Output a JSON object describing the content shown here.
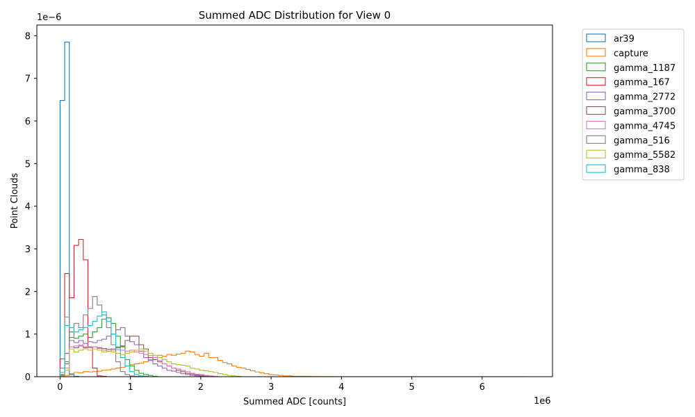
{
  "chart_data": {
    "type": "histogram-step",
    "title": "Summed ADC Distribution for View 0",
    "xlabel": "Summed ADC [counts]",
    "ylabel": "Point Clouds",
    "x_offset_text": "1e6",
    "y_offset_text": "1e−6",
    "xlim": [
      -0.33,
      7.0
    ],
    "ylim": [
      0,
      8.25
    ],
    "x_ticks": [
      0,
      1,
      2,
      3,
      4,
      5,
      6
    ],
    "y_ticks": [
      0,
      1,
      2,
      3,
      4,
      5,
      6,
      7,
      8
    ],
    "x_units": "×1e6 counts",
    "y_units": "×1e-6",
    "bin_width": 0.066,
    "legend_position": "outside-right",
    "grid": false,
    "series": [
      {
        "name": "ar39",
        "color": "#1f77b4",
        "values": [
          6.48,
          7.85,
          0.05,
          0.01
        ]
      },
      {
        "name": "capture",
        "color": "#ff7f0e",
        "values": [
          0.02,
          0.03,
          0.07,
          0.1,
          0.09,
          0.12,
          0.11,
          0.12,
          0.13,
          0.15,
          0.16,
          0.18,
          0.2,
          0.22,
          0.25,
          0.28,
          0.3,
          0.32,
          0.35,
          0.4,
          0.45,
          0.5,
          0.48,
          0.52,
          0.5,
          0.53,
          0.55,
          0.6,
          0.58,
          0.52,
          0.48,
          0.55,
          0.45,
          0.45,
          0.38,
          0.33,
          0.3,
          0.25,
          0.22,
          0.2,
          0.17,
          0.14,
          0.11,
          0.09,
          0.07,
          0.05,
          0.04,
          0.03,
          0.02,
          0.02,
          0.01,
          0.01,
          0.01,
          0.01,
          0.005,
          0.005,
          0.004,
          0.003,
          0.003,
          0.002,
          0.002,
          0.002,
          0.001,
          0.001,
          0.001,
          0.001,
          0.001,
          0.001,
          0.001,
          0.001,
          0.001,
          0.001,
          0.001,
          0.001,
          0.001,
          0.001,
          0.001,
          0.001,
          0.001,
          0.001,
          0.001,
          0.001,
          0.001,
          0.001,
          0.001,
          0.001,
          0.001,
          0.001,
          0.001,
          0.001,
          0.001,
          0.001,
          0.001,
          0.001,
          0.001,
          0.001,
          0.001,
          0.001,
          0.001,
          0.001
        ]
      },
      {
        "name": "gamma_1187",
        "color": "#2ca02c",
        "values": [
          0.05,
          0.35,
          1.05,
          0.9,
          0.95,
          1.0,
          0.92,
          1.05,
          1.15,
          1.35,
          1.38,
          1.25,
          0.95,
          0.7,
          0.4,
          0.25,
          0.15,
          0.08,
          0.05,
          0.03,
          0.01
        ]
      },
      {
        "name": "gamma_167",
        "color": "#d62728",
        "values": [
          0.42,
          2.42,
          1.85,
          3.08,
          3.22,
          2.74,
          0.7,
          0.2,
          0.02,
          0.01
        ]
      },
      {
        "name": "gamma_2772",
        "color": "#9467bd",
        "values": [
          0.05,
          0.55,
          0.85,
          0.8,
          0.85,
          0.78,
          0.82,
          0.8,
          0.85,
          0.88,
          0.95,
          1.0,
          1.1,
          1.15,
          0.95,
          0.82,
          0.75,
          0.6,
          0.45,
          0.38,
          0.3,
          0.25,
          0.2,
          0.15,
          0.13,
          0.1,
          0.07,
          0.05,
          0.03,
          0.02,
          0.01
        ]
      },
      {
        "name": "gamma_3700",
        "color": "#8c564b",
        "values": [
          0.03,
          0.3,
          0.7,
          0.68,
          0.72,
          0.68,
          0.7,
          0.7,
          0.68,
          0.66,
          0.64,
          0.65,
          0.68,
          0.72,
          0.85,
          0.95,
          0.95,
          0.75,
          0.65,
          0.45,
          0.4,
          0.35,
          0.3,
          0.25,
          0.2,
          0.15,
          0.12,
          0.08,
          0.06,
          0.04,
          0.03,
          0.02,
          0.01
        ]
      },
      {
        "name": "gamma_4745",
        "color": "#e377c2",
        "values": [
          0.02,
          0.2,
          0.7,
          0.72,
          0.75,
          0.7,
          0.68,
          0.7,
          0.66,
          0.62,
          0.6,
          0.62,
          0.63,
          0.62,
          0.6,
          0.62,
          0.58,
          0.55,
          0.52,
          0.5,
          0.45,
          0.38,
          0.3,
          0.25,
          0.2,
          0.18,
          0.15,
          0.12,
          0.08,
          0.06,
          0.05,
          0.03,
          0.02,
          0.01
        ]
      },
      {
        "name": "gamma_516",
        "color": "#7f7f7f",
        "values": [
          0.2,
          1.4,
          0.92,
          1.25,
          1.15,
          1.45,
          1.6,
          1.88,
          1.68,
          1.45,
          1.15,
          0.75,
          0.35,
          0.12,
          0.05,
          0.02,
          0.01
        ]
      },
      {
        "name": "gamma_5582",
        "color": "#bcbd22",
        "values": [
          0.02,
          0.15,
          0.65,
          0.58,
          0.62,
          0.65,
          0.62,
          0.65,
          0.62,
          0.58,
          0.6,
          0.58,
          0.55,
          0.52,
          0.55,
          0.58,
          0.62,
          0.65,
          0.6,
          0.55,
          0.5,
          0.45,
          0.4,
          0.35,
          0.3,
          0.28,
          0.27,
          0.25,
          0.2,
          0.18,
          0.15,
          0.14,
          0.12,
          0.1,
          0.07,
          0.05,
          0.03,
          0.02,
          0.01
        ]
      },
      {
        "name": "gamma_838",
        "color": "#17becf",
        "values": [
          0.1,
          1.2,
          1.15,
          1.05,
          1.1,
          1.15,
          1.2,
          1.3,
          1.42,
          1.52,
          1.3,
          1.0,
          0.7,
          0.45,
          0.25,
          0.12,
          0.05,
          0.02,
          0.01
        ]
      }
    ]
  }
}
